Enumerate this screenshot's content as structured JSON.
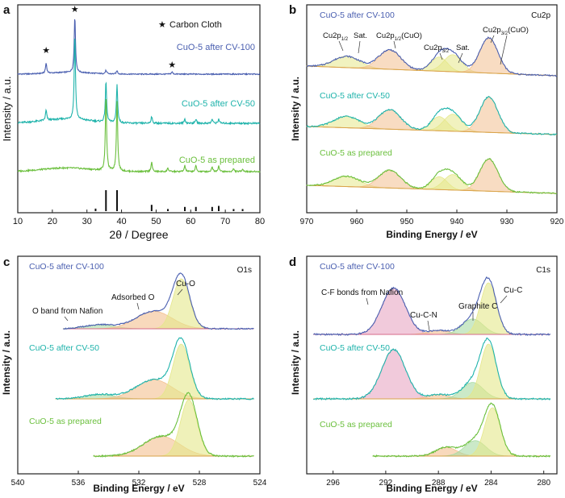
{
  "colors": {
    "blue": "#4a5fb0",
    "teal": "#1fb3ab",
    "green": "#6abf3c",
    "fit_pink": "#e7a7c3",
    "fit_yellow": "#e5e78a",
    "fit_orange": "#f3c08f",
    "fit_green": "#a9dba3",
    "baseline": "#d9a24a"
  },
  "chart_data": [
    {
      "panel": "a",
      "type": "line",
      "xlabel": "2θ / Degree",
      "ylabel": "Intensity / a.u.",
      "xlim": [
        10,
        80
      ],
      "xticks": [
        10,
        20,
        30,
        40,
        50,
        60,
        70,
        80
      ],
      "legend": {
        "marker": "★",
        "label": "Carbon Cloth"
      },
      "series": [
        {
          "name": "CuO-5 after CV-100",
          "color": "#4a5fb0",
          "peaks": [
            [
              18.2,
              0.18
            ],
            [
              26.5,
              1.0
            ],
            [
              35.5,
              0.06
            ],
            [
              38.7,
              0.06
            ],
            [
              54.6,
              0.04
            ]
          ]
        },
        {
          "name": "CuO-5 after CV-50",
          "color": "#1fb3ab",
          "peaks": [
            [
              18.2,
              0.12
            ],
            [
              26.5,
              1.0
            ],
            [
              35.5,
              0.48
            ],
            [
              38.7,
              0.45
            ],
            [
              48.7,
              0.08
            ],
            [
              58.3,
              0.05
            ],
            [
              61.5,
              0.05
            ],
            [
              66.2,
              0.05
            ],
            [
              68.1,
              0.05
            ]
          ]
        },
        {
          "name": "CuO-5 as prepared",
          "color": "#6abf3c",
          "peaks": [
            [
              35.5,
              1.0
            ],
            [
              38.7,
              0.95
            ],
            [
              48.7,
              0.13
            ],
            [
              53.4,
              0.05
            ],
            [
              58.3,
              0.08
            ],
            [
              61.5,
              0.08
            ],
            [
              66.2,
              0.07
            ],
            [
              68.1,
              0.08
            ],
            [
              72.4,
              0.04
            ],
            [
              75.0,
              0.04
            ]
          ]
        }
      ],
      "reference_sticks": [
        [
          32.5,
          0.12
        ],
        [
          35.5,
          1.0
        ],
        [
          38.7,
          1.0
        ],
        [
          48.7,
          0.3
        ],
        [
          53.4,
          0.1
        ],
        [
          58.3,
          0.2
        ],
        [
          61.5,
          0.2
        ],
        [
          66.2,
          0.2
        ],
        [
          68.1,
          0.25
        ],
        [
          72.4,
          0.1
        ],
        [
          75.0,
          0.1
        ]
      ],
      "star_positions": [
        18.2,
        26.5,
        54.6
      ]
    },
    {
      "panel": "b",
      "type": "line",
      "title": "Cu2p",
      "xlabel": "Binding Energy / eV",
      "ylabel": "Intensity / a.u.",
      "xlim": [
        970,
        920
      ],
      "xticks": [
        970,
        960,
        950,
        940,
        930,
        920
      ],
      "series": [
        {
          "name": "CuO-5 after CV-100",
          "color": "#4a5fb0"
        },
        {
          "name": "CuO-5 after CV-50",
          "color": "#1fb3ab"
        },
        {
          "name": "CuO-5 as prepared",
          "color": "#6abf3c"
        }
      ],
      "fit_components": [
        {
          "center": 962.0,
          "height": 0.32,
          "width": 2.6,
          "color": "#e5e78a"
        },
        {
          "center": 953.4,
          "height": 0.55,
          "width": 2.2,
          "color": "#f3c08f"
        },
        {
          "center": 943.5,
          "height": 0.4,
          "width": 1.6,
          "color": "#e5e78a"
        },
        {
          "center": 940.8,
          "height": 0.48,
          "width": 1.8,
          "color": "#e5e78a"
        },
        {
          "center": 933.6,
          "height": 1.0,
          "width": 1.8,
          "color": "#f3c08f"
        }
      ],
      "annotations": {
        "label1": "Cu2p",
        "label1_sub": "1/2",
        "label2": "Sat.",
        "label3": "Cu2p",
        "label3_sub": "1/2",
        "label3_tail": "(CuO)",
        "label4": "Cu2p",
        "label4_sub": "3/2",
        "label5": "Sat.",
        "label6": "Cu2p",
        "label6_sub": "3/2",
        "label6_tail": "(CuO)"
      }
    },
    {
      "panel": "c",
      "type": "line",
      "title": "O1s",
      "xlabel": "Binding Energy / eV",
      "ylabel": "Intensity / a.u.",
      "xlim": [
        540,
        524
      ],
      "xticks": [
        540,
        536,
        532,
        528,
        524
      ],
      "series": [
        {
          "name": "CuO-5 after CV-100",
          "color": "#4a5fb0"
        },
        {
          "name": "CuO-5 after CV-50",
          "color": "#1fb3ab"
        },
        {
          "name": "CuO-5 as prepared",
          "color": "#6abf3c"
        }
      ],
      "fit_components": [
        {
          "center": 534.6,
          "height": 0.08,
          "width": 1.0,
          "color": "#a9dba3"
        },
        {
          "center": 531.0,
          "height": 0.35,
          "width": 1.2,
          "color": "#f3c08f"
        },
        {
          "center": 529.2,
          "height": 1.0,
          "width": 0.55,
          "color": "#e5e78a"
        }
      ],
      "annotations": {
        "a1": "O band from Nafion",
        "a2": "Adsorbed O",
        "a3": "Cu-O"
      }
    },
    {
      "panel": "d",
      "type": "line",
      "title": "C1s",
      "xlabel": "Binding Energy / eV",
      "ylabel": "Intensity / a.u.",
      "xlim": [
        298,
        279
      ],
      "xticks": [
        296,
        292,
        288,
        284,
        280
      ],
      "series": [
        {
          "name": "CuO-5 after CV-100",
          "color": "#4a5fb0"
        },
        {
          "name": "CuO-5 after CV-50",
          "color": "#1fb3ab"
        },
        {
          "name": "CuO-5 as prepared",
          "color": "#6abf3c"
        }
      ],
      "fit_components": [
        {
          "center": 291.4,
          "height": 0.9,
          "width": 0.9,
          "color": "#e7a7c3"
        },
        {
          "center": 288.0,
          "height": 0.08,
          "width": 0.8,
          "color": "#f3c08f"
        },
        {
          "center": 285.4,
          "height": 0.3,
          "width": 0.8,
          "color": "#a9dba3"
        },
        {
          "center": 284.2,
          "height": 1.0,
          "width": 0.6,
          "color": "#e5e78a"
        }
      ],
      "annotations": {
        "a1": "C-F bonds from Nafion",
        "a2": "Cu-C-N",
        "a3": "Graphite C",
        "a4": "Cu-C"
      }
    }
  ]
}
